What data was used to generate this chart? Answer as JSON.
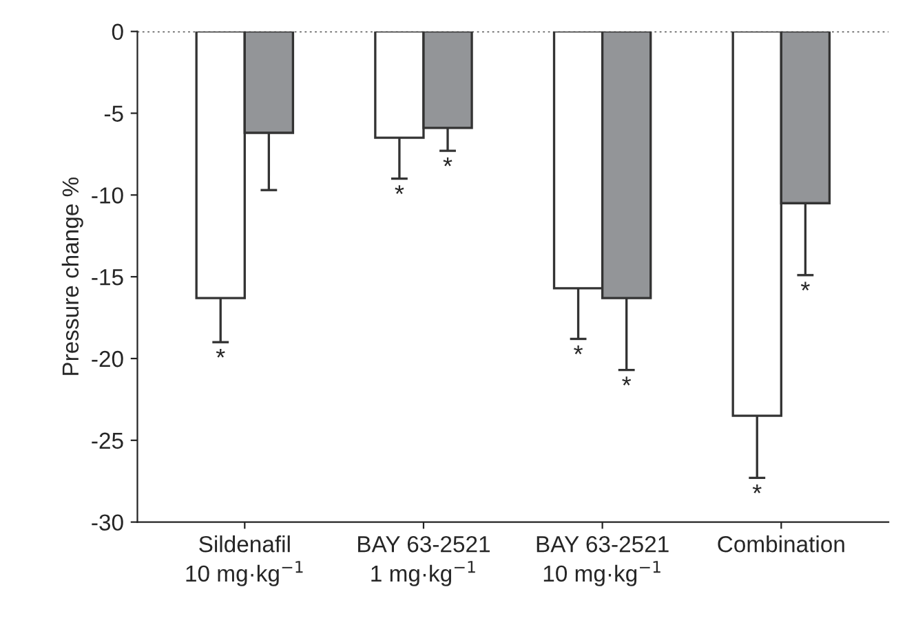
{
  "chart_data": {
    "type": "bar",
    "ylabel": "Pressure change %",
    "categories": [
      "Sildenafil\n10 mg·kg$^{−1}$",
      "BAY 63-2521\n1 mg·kg$^{−1}$",
      "BAY 63-2521\n10 mg·kg$^{−1}$",
      "Combination"
    ],
    "series": [
      {
        "color": "#ffffff",
        "values": [
          -16.3,
          -6.5,
          -15.7,
          -23.5
        ],
        "errors": [
          [
            -19.0,
            -16.3
          ],
          [
            -9.0,
            -6.5
          ],
          [
            -18.8,
            -15.7
          ],
          [
            -27.3,
            -23.5
          ]
        ],
        "value_labels": [
          "*",
          "*",
          "*",
          "*"
        ]
      },
      {
        "color": "#939598",
        "values": [
          -6.2,
          -5.9,
          -16.3,
          -10.5
        ],
        "errors": [
          [
            -9.7,
            -6.2
          ],
          [
            -7.3,
            -5.9
          ],
          [
            -20.7,
            -16.3
          ],
          [
            -14.9,
            -10.5
          ]
        ],
        "value_labels": [
          null,
          "*",
          "*",
          "*"
        ]
      }
    ],
    "ylim": [
      -30,
      0
    ],
    "yticks": [
      -30,
      -25,
      -20,
      -15,
      -10,
      -5,
      0
    ],
    "ref_lines": [
      {
        "axis": "y",
        "value": 0,
        "line_style": "dotted",
        "color": "#333333"
      }
    ],
    "grid": false,
    "legend": false
  }
}
